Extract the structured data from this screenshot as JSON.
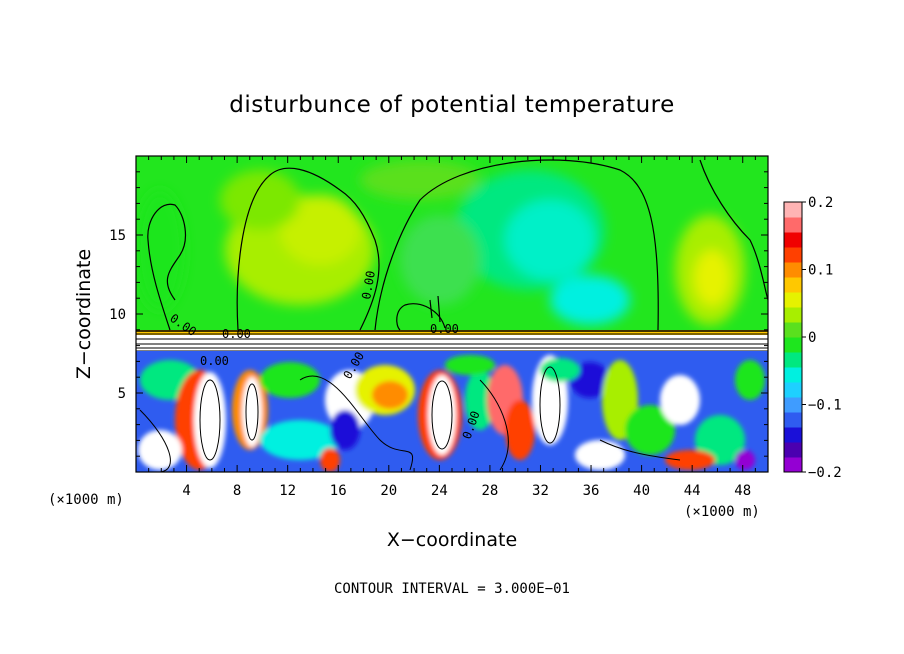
{
  "chart_data": {
    "type": "heatmap",
    "title": "disturbunce of potential temperature",
    "xlabel": "X−coordinate",
    "ylabel": "Z−coordinate",
    "x_unit": "(×1000 m)",
    "x_unit_right": "(×1000 m)",
    "xlim": [
      0,
      50
    ],
    "ylim": [
      0,
      20
    ],
    "x_ticks": [
      4,
      8,
      12,
      16,
      20,
      24,
      28,
      32,
      36,
      40,
      44,
      48
    ],
    "y_ticks": [
      5,
      10,
      15
    ],
    "colorbar": {
      "min": -0.2,
      "max": 0.2,
      "ticks": [
        {
          "value": 0.2,
          "label": "0.2"
        },
        {
          "value": 0.1,
          "label": "0.1"
        },
        {
          "value": 0,
          "label": "0"
        },
        {
          "value": -0.1,
          "label": "−0.1"
        },
        {
          "value": -0.2,
          "label": "−0.2"
        }
      ],
      "colors": [
        "#9400d3",
        "#4b00b0",
        "#1a10d8",
        "#2f5cf0",
        "#3f9cff",
        "#1ed0ff",
        "#00f0e0",
        "#00e880",
        "#1ee61e",
        "#5ae01e",
        "#a8ee00",
        "#e6f200",
        "#ffc800",
        "#ff8c00",
        "#ff4000",
        "#f00000",
        "#ff6a6a",
        "#ffb4b4"
      ]
    },
    "contour_labels": [
      "0.00",
      "0.00",
      "0.00",
      "0.00",
      "0.00",
      "0.00",
      "0.00"
    ],
    "contour_interval": "CONTOUR INTERVAL = 3.000E−01"
  }
}
